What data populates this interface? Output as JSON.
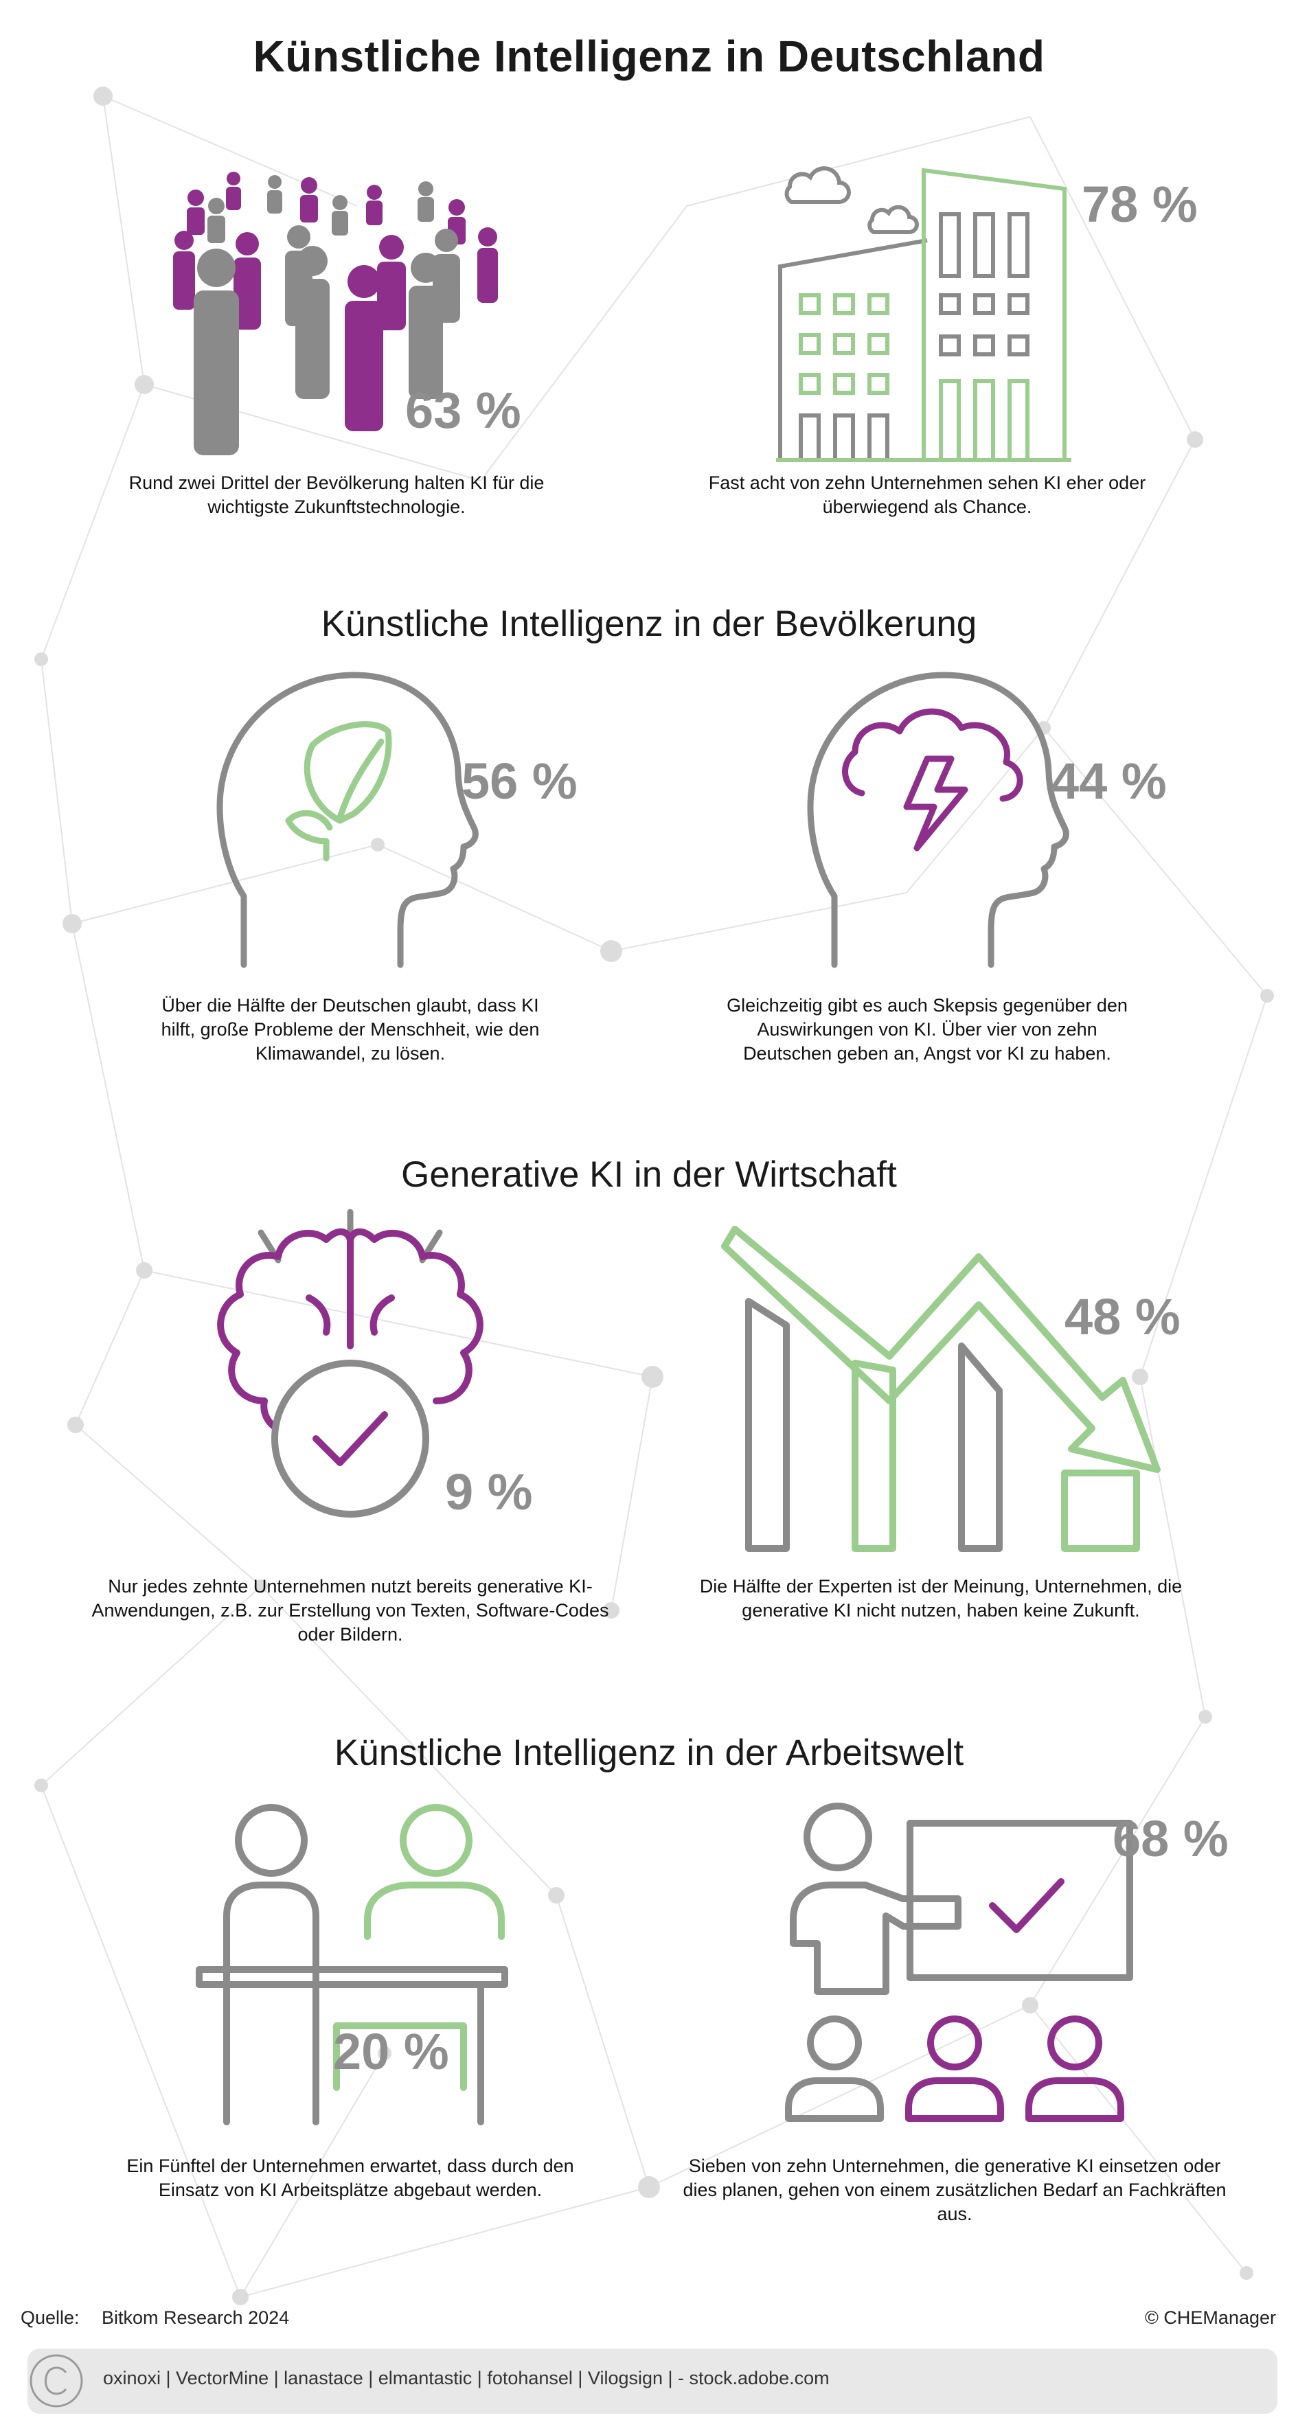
{
  "title": "Künstliche Intelligenz in Deutschland",
  "sections": [
    {
      "title": "",
      "items": [
        {
          "value": "63 %",
          "caption": "Rund zwei Drittel der Bevölkerung halten KI für die wichtigste Zukunftstechnologie.",
          "icon": "crowd-icon"
        },
        {
          "value": "78 %",
          "caption": "Fast acht von zehn Unternehmen sehen KI eher oder überwiegend als Chance.",
          "icon": "office-buildings-icon"
        }
      ]
    },
    {
      "title": "Künstliche Intelligenz in der Bevölkerung",
      "items": [
        {
          "value": "56 %",
          "caption": "Über die Hälfte der Deutschen glaubt, dass KI hilft, große Probleme der Menschheit, wie den Klimawandel, zu lösen.",
          "icon": "head-leaf-icon"
        },
        {
          "value": "44 %",
          "caption": "Gleichzeitig gibt es auch Skepsis gegenüber den Auswirkungen von KI. Über vier von zehn Deutschen geben an, Angst vor KI zu haben.",
          "icon": "head-storm-icon"
        }
      ]
    },
    {
      "title": "Generative KI in der Wirtschaft",
      "items": [
        {
          "value": "9 %",
          "caption": "Nur jedes zehnte Unternehmen nutzt bereits generative KI-Anwendungen, z.B. zur Erstellung von Texten, Software-Codes oder Bildern.",
          "icon": "brain-check-icon"
        },
        {
          "value": "48 %",
          "caption": "Die Hälfte der Experten ist der Meinung, Unternehmen, die generative KI nicht nutzen, haben keine Zukunft.",
          "icon": "declining-chart-icon"
        }
      ]
    },
    {
      "title": "Künstliche Intelligenz in der Arbeitswelt",
      "items": [
        {
          "value": "20 %",
          "caption": "Ein Fünftel der Unternehmen erwartet, dass durch den Einsatz von KI Arbeitsplätze abgebaut werden.",
          "icon": "desk-workers-icon"
        },
        {
          "value": "68 %",
          "caption": "Sieben von zehn Unternehmen, die generative KI einsetzen oder dies planen, gehen von einem zusätzlichen Bedarf an Fachkräften aus.",
          "icon": "presenter-icon"
        }
      ]
    }
  ],
  "footer": {
    "source_label": "Quelle:",
    "source_value": "Bitkom Research 2024",
    "copyright": "© CHEManager",
    "image_credits": "oxinoxi | VectorMine | lanastace | elmantastic | fotohansel | Vilogsign | - stock.adobe.com"
  },
  "colors": {
    "gray": "#8a8a8a",
    "purple": "#8e2f8b",
    "green": "#9acd8e",
    "text": "#1a1a1a"
  }
}
